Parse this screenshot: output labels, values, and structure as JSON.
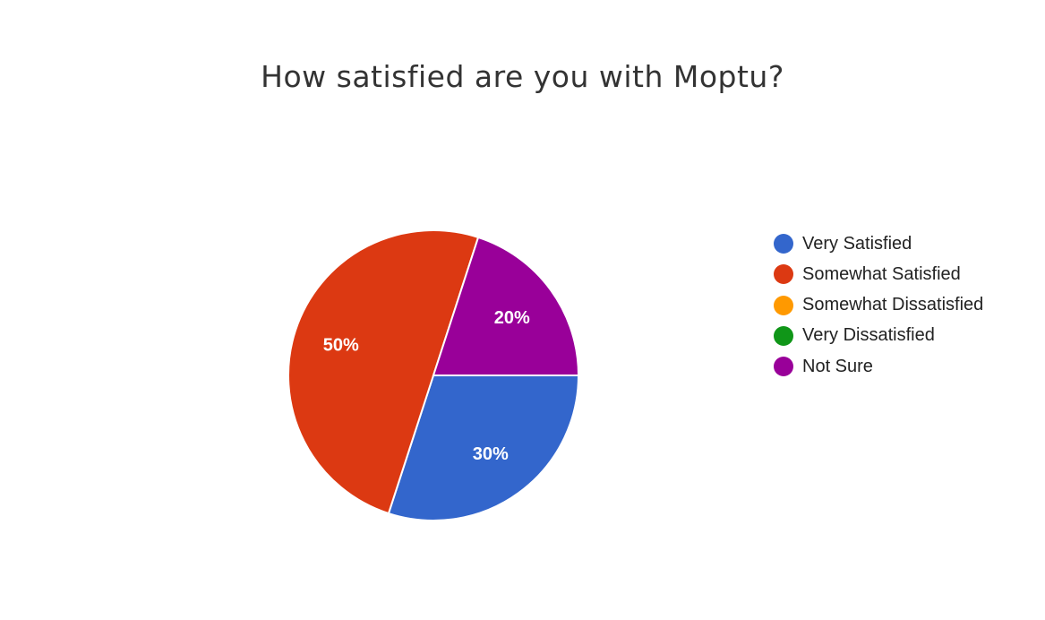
{
  "chart_data": {
    "type": "pie",
    "title": "How satisfied are you with Moptu?",
    "categories": [
      "Very Satisfied",
      "Somewhat Satisfied",
      "Somewhat Dissatisfied",
      "Very Dissatisfied",
      "Not Sure"
    ],
    "values": [
      30,
      50,
      0,
      0,
      20
    ],
    "value_labels": [
      "30%",
      "50%",
      "",
      "",
      "20%"
    ],
    "colors": [
      "#3366cc",
      "#dc3912",
      "#ff9900",
      "#109618",
      "#990099"
    ],
    "legend_position": "right",
    "start_angle": "90 degrees clockwise from top (3 o'clock)",
    "direction": "clockwise"
  }
}
